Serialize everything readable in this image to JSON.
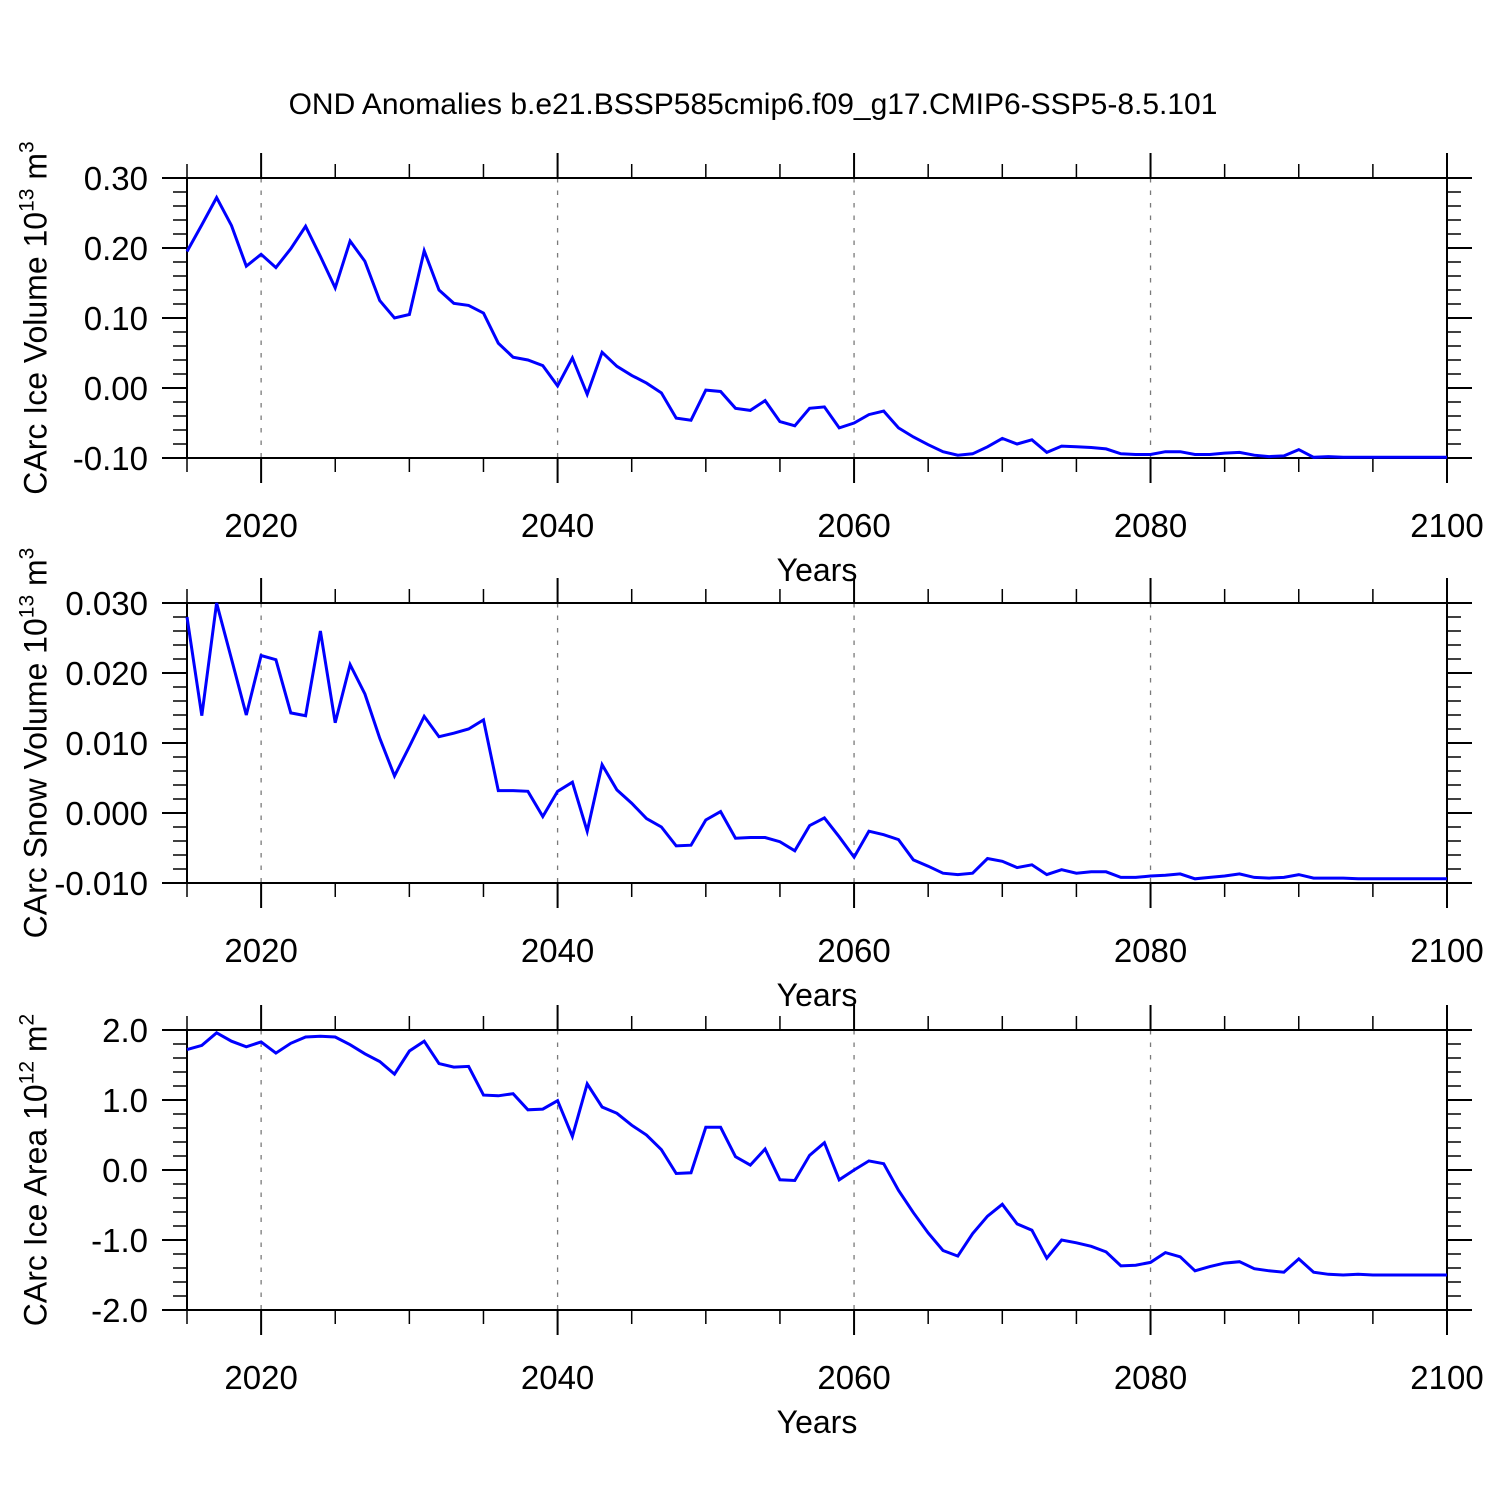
{
  "title": "OND Anomalies b.e21.BSSP585cmip6.f09_g17.CMIP6-SSP5-8.5.101",
  "line_color": "#0000ff",
  "gridline_color": "#7a7a7a",
  "axis_color": "#000000",
  "x_axis": {
    "label": "Years",
    "range": [
      2015,
      2100
    ],
    "tick_labels": [
      "2020",
      "2040",
      "2060",
      "2080",
      "2100"
    ],
    "tick_years": [
      2020,
      2040,
      2060,
      2080,
      2100
    ],
    "minor_tick_step": 5,
    "gridline_years": [
      2020,
      2040,
      2060,
      2080
    ],
    "gridline_style": "dashed"
  },
  "chart_data": [
    {
      "type": "line",
      "name": "CArc Ice Volume",
      "ylabel_main": "CArc Ice Volume 10",
      "ylabel_exp": "13",
      "ylabel_unit": " m",
      "ylabel_unit_exp": "3",
      "xlabel": "Years",
      "ylim": [
        -0.1,
        0.3
      ],
      "ytick_values": [
        0.3,
        0.2,
        0.1,
        0.0,
        -0.1
      ],
      "ytick_labels": [
        "0.30",
        "0.20",
        "0.10",
        "0.00",
        "-0.10"
      ],
      "y_minor_step": 0.02,
      "x_start": 2015,
      "x_end": 2100,
      "x_step": 1,
      "values": [
        0.195,
        0.233,
        0.272,
        0.232,
        0.174,
        0.191,
        0.172,
        0.199,
        0.231,
        0.188,
        0.143,
        0.21,
        0.181,
        0.125,
        0.1,
        0.105,
        0.196,
        0.14,
        0.121,
        0.118,
        0.107,
        0.064,
        0.044,
        0.04,
        0.032,
        0.003,
        0.043,
        -0.009,
        0.051,
        0.031,
        0.018,
        0.007,
        -0.007,
        -0.043,
        -0.046,
        -0.003,
        -0.005,
        -0.029,
        -0.032,
        -0.018,
        -0.048,
        -0.054,
        -0.029,
        -0.027,
        -0.057,
        -0.05,
        -0.038,
        -0.033,
        -0.057,
        -0.07,
        -0.081,
        -0.091,
        -0.096,
        -0.094,
        -0.084,
        -0.072,
        -0.08,
        -0.074,
        -0.092,
        -0.083,
        -0.084,
        -0.085,
        -0.087,
        -0.094,
        -0.095,
        -0.095,
        -0.091,
        -0.091,
        -0.095,
        -0.095,
        -0.093,
        -0.092,
        -0.096,
        -0.098,
        -0.097,
        -0.088,
        -0.099,
        -0.098,
        -0.099,
        -0.099,
        -0.099,
        -0.099,
        -0.099,
        -0.099,
        -0.099,
        -0.099
      ]
    },
    {
      "type": "line",
      "name": "CArc Snow Volume",
      "ylabel_main": "CArc Snow Volume 10",
      "ylabel_exp": "13",
      "ylabel_unit": " m",
      "ylabel_unit_exp": "3",
      "xlabel": "Years",
      "ylim": [
        -0.01,
        0.03
      ],
      "ytick_values": [
        0.03,
        0.02,
        0.01,
        0.0,
        -0.01
      ],
      "ytick_labels": [
        "0.030",
        "0.020",
        "0.010",
        "0.000",
        "-0.010"
      ],
      "y_minor_step": 0.002,
      "x_start": 2015,
      "x_end": 2100,
      "x_step": 1,
      "values": [
        0.028,
        0.0139,
        0.03,
        0.022,
        0.014,
        0.0225,
        0.0219,
        0.0143,
        0.0139,
        0.026,
        0.0129,
        0.0212,
        0.017,
        0.0107,
        0.0053,
        0.0095,
        0.0138,
        0.0109,
        0.0114,
        0.012,
        0.0133,
        0.0032,
        0.0032,
        0.0031,
        -0.0005,
        0.0031,
        0.0044,
        -0.0026,
        0.0069,
        0.0033,
        0.0014,
        -0.0008,
        -0.002,
        -0.0047,
        -0.0046,
        -0.001,
        0.0002,
        -0.0036,
        -0.0035,
        -0.0035,
        -0.0041,
        -0.0054,
        -0.0018,
        -0.0007,
        -0.0034,
        -0.0063,
        -0.0026,
        -0.0031,
        -0.0038,
        -0.0067,
        -0.0076,
        -0.0086,
        -0.0088,
        -0.0086,
        -0.0065,
        -0.0069,
        -0.0078,
        -0.0074,
        -0.0088,
        -0.0081,
        -0.0086,
        -0.0084,
        -0.0084,
        -0.0092,
        -0.0092,
        -0.009,
        -0.0089,
        -0.0087,
        -0.0094,
        -0.0092,
        -0.009,
        -0.0087,
        -0.0092,
        -0.0093,
        -0.0092,
        -0.0088,
        -0.0093,
        -0.0093,
        -0.0093,
        -0.0094,
        -0.0094,
        -0.0094,
        -0.0094,
        -0.0094,
        -0.0094,
        -0.0094
      ]
    },
    {
      "type": "line",
      "name": "CArc Ice Area",
      "ylabel_main": "CArc Ice Area 10",
      "ylabel_exp": "12",
      "ylabel_unit": " m",
      "ylabel_unit_exp": "2",
      "xlabel": "Years",
      "ylim": [
        -2.0,
        2.0
      ],
      "ytick_values": [
        2.0,
        1.0,
        0.0,
        -1.0,
        -2.0
      ],
      "ytick_labels": [
        "2.0",
        "1.0",
        "0.0",
        "-1.0",
        "-2.0"
      ],
      "y_minor_step": 0.2,
      "x_start": 2015,
      "x_end": 2100,
      "x_step": 1,
      "values": [
        1.72,
        1.78,
        1.96,
        1.84,
        1.76,
        1.83,
        1.67,
        1.81,
        1.9,
        1.91,
        1.9,
        1.79,
        1.66,
        1.55,
        1.37,
        1.7,
        1.84,
        1.52,
        1.47,
        1.48,
        1.07,
        1.06,
        1.09,
        0.86,
        0.87,
        0.99,
        0.48,
        1.23,
        0.9,
        0.81,
        0.64,
        0.5,
        0.29,
        -0.05,
        -0.04,
        0.61,
        0.61,
        0.19,
        0.07,
        0.3,
        -0.14,
        -0.15,
        0.21,
        0.39,
        -0.14,
        0.0,
        0.13,
        0.09,
        -0.29,
        -0.61,
        -0.9,
        -1.15,
        -1.23,
        -0.91,
        -0.66,
        -0.49,
        -0.77,
        -0.86,
        -1.26,
        -1.0,
        -1.04,
        -1.09,
        -1.17,
        -1.37,
        -1.36,
        -1.32,
        -1.18,
        -1.24,
        -1.44,
        -1.38,
        -1.33,
        -1.31,
        -1.41,
        -1.44,
        -1.46,
        -1.27,
        -1.46,
        -1.49,
        -1.5,
        -1.49,
        -1.5,
        -1.5,
        -1.5,
        -1.5,
        -1.5,
        -1.5
      ]
    }
  ]
}
